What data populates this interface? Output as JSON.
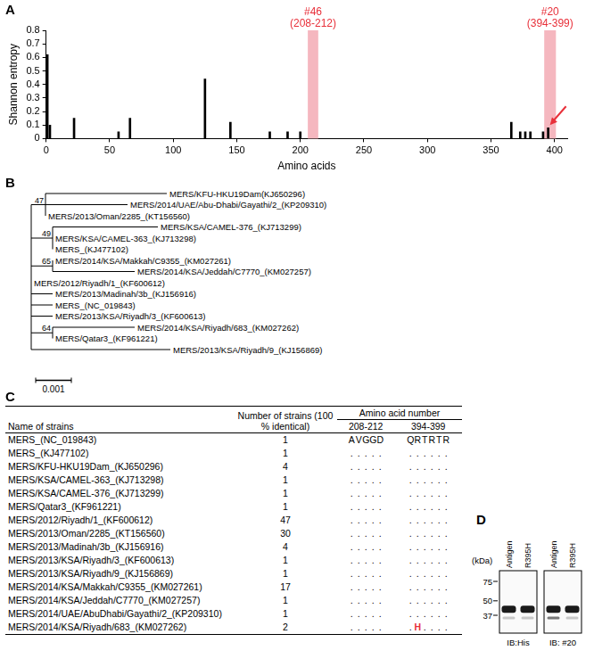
{
  "panel_labels": [
    "A",
    "B",
    "C",
    "D"
  ],
  "chart_data": {
    "type": "bar",
    "x_label": "Amino acids",
    "y_label": "Shannon entropy",
    "x": [
      1,
      3,
      22,
      57,
      66,
      125,
      145,
      176,
      190,
      200,
      366,
      373,
      377,
      381,
      391,
      395
    ],
    "values": [
      0.62,
      0.1,
      0.15,
      0.05,
      0.15,
      0.44,
      0.12,
      0.05,
      0.05,
      0.05,
      0.12,
      0.05,
      0.05,
      0.05,
      0.05,
      0.08
    ],
    "color": "#000000",
    "xlim": [
      0,
      410
    ],
    "xticks": [
      0,
      50,
      100,
      150,
      200,
      250,
      300,
      350,
      400
    ],
    "ylim": [
      0,
      0.8
    ],
    "yticks": [
      0,
      0.1,
      0.2,
      0.3,
      0.4,
      0.5,
      0.6,
      0.7,
      0.8
    ],
    "grid": false,
    "annotations": [
      {
        "text": "#46",
        "subtext": "(208-212)",
        "x_start": 208,
        "x_end": 212
      },
      {
        "text": "#20",
        "subtext": "(394-399)",
        "x_start": 394,
        "x_end": 399
      },
      {
        "type": "arrow",
        "x": 395,
        "y": 0.08
      }
    ]
  },
  "tree": {
    "scale_bar": {
      "value": 0.001,
      "label": "0.001"
    },
    "root": {
      "children": [
        {
          "support": "47",
          "length": 0.0004,
          "children": [
            {
              "label": "MERS/KFU-HKU19Dam(KJ650296)",
              "length": 0.0034
            },
            {
              "label": "MERS/2014/UAE/Abu-Dhabi/Gayathi/2_(KP209310)",
              "length": 0.0023
            },
            {
              "label": "MERS/2013/Oman/2285_(KT156560)",
              "length": 0
            }
          ]
        },
        {
          "support": "49",
          "length": 0.0006,
          "children": [
            {
              "label": "MERS/KSA/CAMEL-376_(KJ713299)",
              "length": 0.00295
            },
            {
              "label": "MERS/KSA/CAMEL-363_(KJ713298)",
              "length": 0
            },
            {
              "label": "MERS_(KJ477102)",
              "length": 0
            }
          ]
        },
        {
          "support": "65",
          "length": 0.0006,
          "children": [
            {
              "label": "MERS/2014/KSA/Makkah/C9355_(KM027261)",
              "length": 0
            },
            {
              "label": "MERS/2014/KSA/Jeddah/C7770_(KM027257)",
              "length": 0.0023
            }
          ]
        },
        {
          "label": "MERS/2012/Riyadh/1_(KF600612)",
          "length": 0
        },
        {
          "label": "MERS/2013/Madinah/3b_(KJ156916)",
          "length": 0.0006
        },
        {
          "label": "MERS_(NC_019843)",
          "length": 0.0006
        },
        {
          "label": "MERS/2013/KSA/Riyadh/3_(KF600613)",
          "length": 0.0006
        },
        {
          "support": "64",
          "length": 0.0006,
          "children": [
            {
              "label": "MERS/2014/KSA/Riyadh/683_(KM027262)",
              "length": 0.0023
            },
            {
              "label": "MERS/Qatar3_(KF961221)",
              "length": 0
            }
          ]
        },
        {
          "label": "MERS/2013/KSA/Riyadh/9_(KJ156869)",
          "length": 0.0039
        }
      ]
    }
  },
  "table": {
    "header": {
      "name": "Name of strains",
      "count": "Number of strains (100 % identical)",
      "group": "Amino acid number",
      "ranges": [
        "208-212",
        "394-399"
      ]
    },
    "rows": [
      {
        "name": "MERS_(NC_019843)",
        "count": 1,
        "residues": [
          [
            "A",
            "V",
            "G",
            "G",
            "D"
          ],
          [
            "Q",
            "R",
            "T",
            "R",
            "T",
            "R"
          ]
        ]
      },
      {
        "name": "MERS_(KJ477102)",
        "count": 1,
        "residues": [
          [
            ".",
            ".",
            ".",
            ".",
            "."
          ],
          [
            ".",
            ".",
            ".",
            ".",
            ".",
            "."
          ]
        ]
      },
      {
        "name": "MERS/KFU-HKU19Dam_(KJ650296)",
        "count": 4,
        "residues": [
          [
            ".",
            ".",
            ".",
            ".",
            "."
          ],
          [
            ".",
            ".",
            ".",
            ".",
            ".",
            "."
          ]
        ]
      },
      {
        "name": "MERS/KSA/CAMEL-363_(KJ713298)",
        "count": 1,
        "residues": [
          [
            ".",
            ".",
            ".",
            ".",
            "."
          ],
          [
            ".",
            ".",
            ".",
            ".",
            ".",
            "."
          ]
        ]
      },
      {
        "name": "MERS/KSA/CAMEL-376_(KJ713299)",
        "count": 1,
        "residues": [
          [
            ".",
            ".",
            ".",
            ".",
            "."
          ],
          [
            ".",
            ".",
            ".",
            ".",
            ".",
            "."
          ]
        ]
      },
      {
        "name": "MERS/Qatar3_(KF961221)",
        "count": 1,
        "residues": [
          [
            ".",
            ".",
            ".",
            ".",
            "."
          ],
          [
            ".",
            ".",
            ".",
            ".",
            ".",
            "."
          ]
        ]
      },
      {
        "name": "MERS/2012/Riyadh/1_(KF600612)",
        "count": 47,
        "residues": [
          [
            ".",
            ".",
            ".",
            ".",
            "."
          ],
          [
            ".",
            ".",
            ".",
            ".",
            ".",
            "."
          ]
        ]
      },
      {
        "name": "MERS/2013/Oman/2285_(KT156560)",
        "count": 30,
        "residues": [
          [
            ".",
            ".",
            ".",
            ".",
            "."
          ],
          [
            ".",
            ".",
            ".",
            ".",
            ".",
            "."
          ]
        ]
      },
      {
        "name": "MERS/2013/Madinah/3b_(KJ156916)",
        "count": 4,
        "residues": [
          [
            ".",
            ".",
            ".",
            ".",
            "."
          ],
          [
            ".",
            ".",
            ".",
            ".",
            ".",
            "."
          ]
        ]
      },
      {
        "name": "MERS/2013/KSA/Riyadh/3_(KF600613)",
        "count": 1,
        "residues": [
          [
            ".",
            ".",
            ".",
            ".",
            "."
          ],
          [
            ".",
            ".",
            ".",
            ".",
            ".",
            "."
          ]
        ]
      },
      {
        "name": "MERS/2013/KSA/Riyadh/9_(KJ156869)",
        "count": 1,
        "residues": [
          [
            ".",
            ".",
            ".",
            ".",
            "."
          ],
          [
            ".",
            ".",
            ".",
            ".",
            ".",
            "."
          ]
        ]
      },
      {
        "name": "MERS/2014/KSA/Makkah/C9355_(KM027261)",
        "count": 17,
        "residues": [
          [
            ".",
            ".",
            ".",
            ".",
            "."
          ],
          [
            ".",
            ".",
            ".",
            ".",
            ".",
            "."
          ]
        ]
      },
      {
        "name": "MERS/2014/KSA/Jeddah/C7770_(KM027257)",
        "count": 1,
        "residues": [
          [
            ".",
            ".",
            ".",
            ".",
            "."
          ],
          [
            ".",
            ".",
            ".",
            ".",
            ".",
            "."
          ]
        ]
      },
      {
        "name": "MERS/2014/UAE/AbuDhabi/Gayathi/2_(KP209310)",
        "count": 1,
        "residues": [
          [
            ".",
            ".",
            ".",
            ".",
            "."
          ],
          [
            ".",
            ".",
            ".",
            ".",
            ".",
            "."
          ]
        ]
      },
      {
        "name": "MERS/2014/KSA/Riyadh/683_(KM027262)",
        "count": 2,
        "residues": [
          [
            ".",
            ".",
            ".",
            ".",
            "."
          ],
          [
            ".",
            "H",
            ".",
            ".",
            ".",
            "."
          ]
        ]
      }
    ]
  },
  "blot": {
    "unit_label": "(kDa)",
    "markers": [
      75,
      50,
      37
    ],
    "band_kda": 42,
    "faint_band_kda": 35,
    "panels": [
      {
        "label": "IB:His",
        "lanes": [
          "Antigen",
          "R395H"
        ]
      },
      {
        "label": "IB: #20",
        "lanes": [
          "Antigen",
          "R395H"
        ]
      }
    ]
  }
}
